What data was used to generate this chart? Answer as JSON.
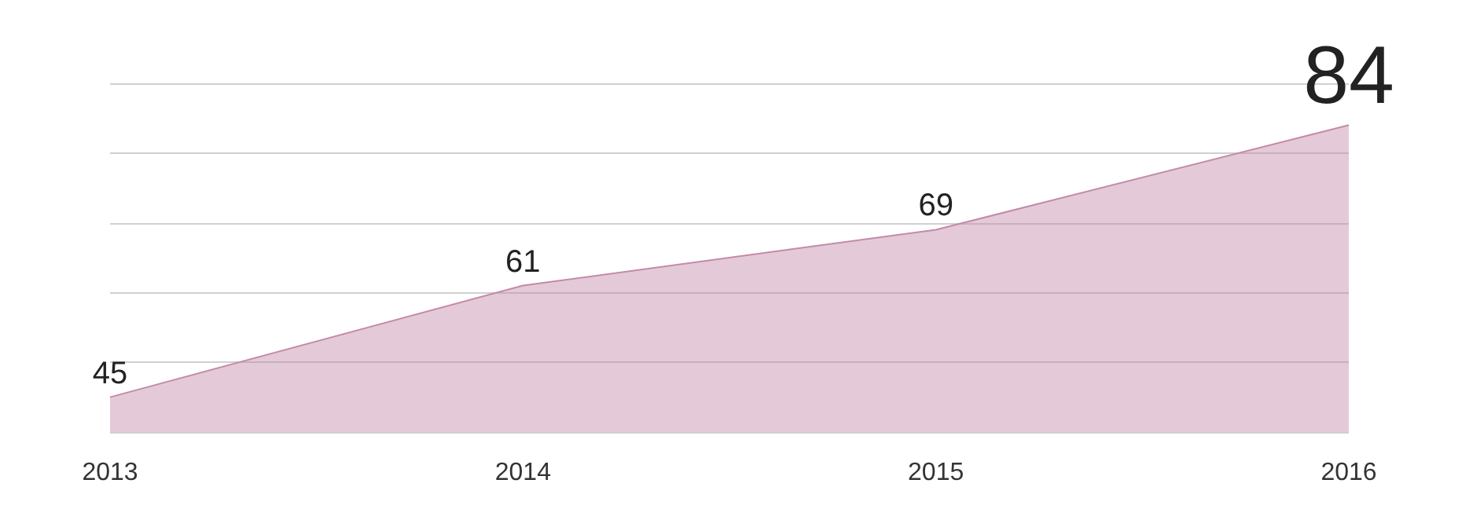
{
  "chart_data": {
    "type": "area",
    "categories": [
      "2013",
      "2014",
      "2015",
      "2016"
    ],
    "series": [
      {
        "color": "#c48aa8",
        "values": [
          45,
          61,
          69,
          84
        ]
      }
    ],
    "tick_labels": "x",
    "grid": "y",
    "data_labels": true
  }
}
